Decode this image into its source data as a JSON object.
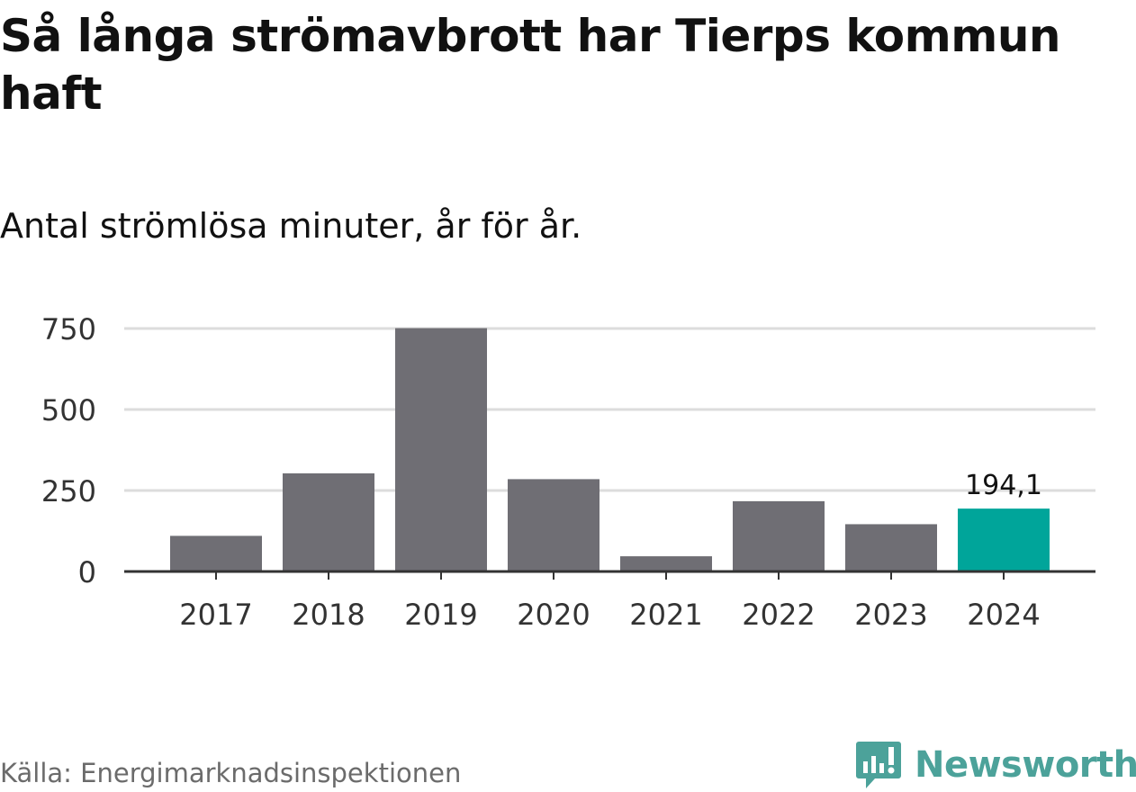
{
  "title": "Så långa strömavbrott har Tierps kommun haft",
  "subtitle": "Antal strömlösa minuter, år för år.",
  "source": "Källa: Energimarknadsinspektionen",
  "brand": {
    "name": "Newsworthy",
    "icon": "newsworthy-logo-icon",
    "color": "#4ca29a"
  },
  "colors": {
    "bar": "#6f6e74",
    "highlight": "#00a59a",
    "grid": "#dcdcdc",
    "axis": "#333333"
  },
  "chart_data": {
    "type": "bar",
    "categories": [
      "2017",
      "2018",
      "2019",
      "2020",
      "2021",
      "2022",
      "2023",
      "2024"
    ],
    "values": [
      110,
      303,
      751,
      285,
      47,
      217,
      146,
      194.1
    ],
    "highlight_index": 7,
    "data_labels": [
      {
        "index": 7,
        "text": "194,1"
      }
    ],
    "yticks": [
      0,
      250,
      500,
      750
    ],
    "ylim": [
      0,
      750
    ],
    "grid": true,
    "xlabel": "",
    "ylabel": ""
  }
}
